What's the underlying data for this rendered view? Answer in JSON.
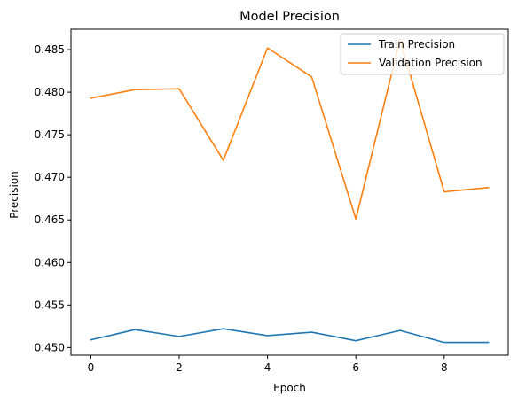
{
  "chart_data": {
    "type": "line",
    "title": "Model Precision",
    "xlabel": "Epoch",
    "ylabel": "Precision",
    "x": [
      0,
      1,
      2,
      3,
      4,
      5,
      6,
      7,
      8,
      9
    ],
    "xticks": [
      0,
      2,
      4,
      6,
      8
    ],
    "xlim": [
      -0.45,
      9.45
    ],
    "yticks": [
      0.45,
      0.455,
      0.46,
      0.465,
      0.47,
      0.475,
      0.48,
      0.485
    ],
    "ytick_labels": [
      "0.450",
      "0.455",
      "0.460",
      "0.465",
      "0.470",
      "0.475",
      "0.480",
      "0.485"
    ],
    "ylim": [
      0.4491,
      0.4874
    ],
    "grid": false,
    "legend_position": "top-right",
    "series": [
      {
        "name": "Train Precision",
        "color": "#1f77b4",
        "values": [
          0.4509,
          0.4521,
          0.4513,
          0.4522,
          0.4514,
          0.4518,
          0.4508,
          0.452,
          0.4506,
          0.4506
        ]
      },
      {
        "name": "Validation Precision",
        "color": "#ff7f0e",
        "values": [
          0.4793,
          0.4803,
          0.4804,
          0.472,
          0.4852,
          0.4818,
          0.4651,
          0.4862,
          0.4683,
          0.4688
        ]
      }
    ]
  }
}
